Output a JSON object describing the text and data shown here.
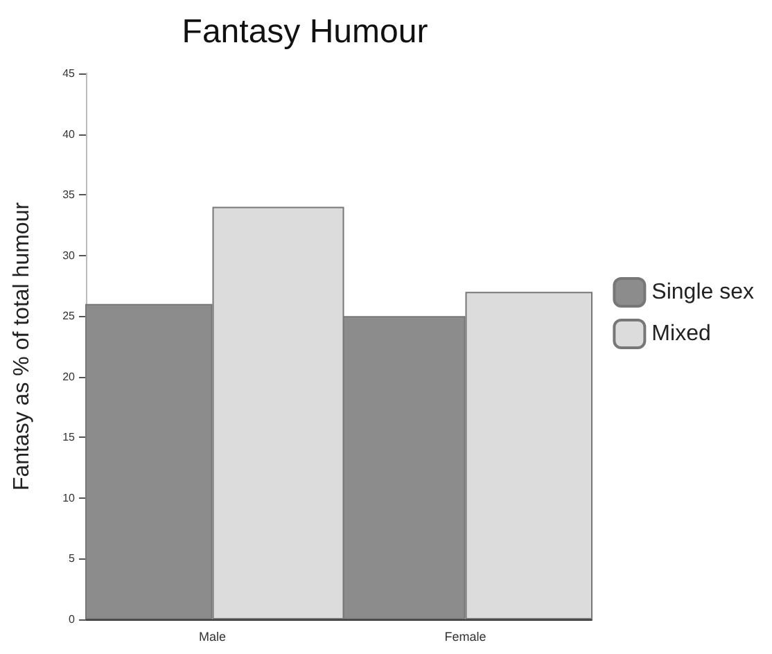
{
  "chart_data": {
    "type": "bar",
    "title": "Fantasy Humour",
    "ylabel": "Fantasy as % of total humour",
    "categories": [
      "Male",
      "Female"
    ],
    "series": [
      {
        "name": "Single sex",
        "color": "#8c8c8c",
        "values": [
          26,
          25
        ]
      },
      {
        "name": "Mixed",
        "color": "#dcdcdc",
        "values": [
          34,
          27
        ]
      }
    ],
    "ylim": [
      0,
      45
    ],
    "yticks": [
      0,
      5,
      10,
      15,
      20,
      25,
      30,
      35,
      40,
      45
    ],
    "grid": false,
    "legend": "right"
  }
}
